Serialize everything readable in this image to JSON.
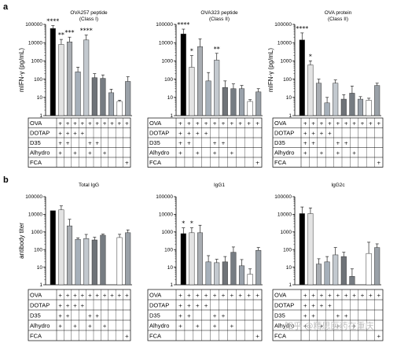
{
  "panel_labels": [
    "a",
    "b"
  ],
  "watermark": "知乎 @精思医药在重庆",
  "table_rows": [
    "OVA",
    "DOTAP",
    "D35",
    "Alhydro",
    "FCA"
  ],
  "bar_colors": [
    "#000000",
    "#e3e3e3",
    "#a9adb2",
    "#a6b0ba",
    "#c3c9cf",
    "#6f7378",
    "#767c82",
    "#9aa2ab",
    "#ffffff",
    "#9aa1a8"
  ],
  "row_a": {
    "ylabel": "mIFN-γ (pg/mL)",
    "yticks": [
      "1",
      "10",
      "100",
      "1000",
      "10000",
      "100000"
    ],
    "plus_matrix": [
      [
        1,
        1,
        1,
        1,
        1,
        1,
        1,
        1,
        1,
        1
      ],
      [
        1,
        1,
        1,
        1,
        0,
        0,
        0,
        0,
        0,
        0
      ],
      [
        1,
        1,
        0,
        0,
        1,
        1,
        0,
        0,
        0,
        0
      ],
      [
        1,
        0,
        1,
        0,
        1,
        0,
        1,
        0,
        0,
        0
      ],
      [
        0,
        0,
        0,
        0,
        0,
        0,
        0,
        0,
        0,
        1
      ]
    ]
  },
  "row_b": {
    "ylabel": "antibody titer",
    "yticks": [
      "1",
      "10",
      "100",
      "1000",
      "10000",
      "100000"
    ],
    "plus_matrix": [
      [
        1,
        1,
        1,
        1,
        1,
        1,
        1,
        1,
        1,
        1
      ],
      [
        1,
        1,
        1,
        1,
        0,
        0,
        0,
        0,
        0,
        0
      ],
      [
        1,
        1,
        0,
        0,
        1,
        1,
        0,
        0,
        0,
        0
      ],
      [
        1,
        0,
        1,
        0,
        1,
        0,
        1,
        0,
        0,
        0
      ],
      [
        0,
        0,
        0,
        0,
        0,
        0,
        0,
        0,
        0,
        1
      ]
    ]
  },
  "chart_data": [
    {
      "type": "bar",
      "panel": "a",
      "title": "OVA257 peptide",
      "subtitle": "(Class I)",
      "ylabel": "mIFN-γ (pg/mL)",
      "yscale": "log",
      "ylim": [
        1,
        100000
      ],
      "values": [
        60000,
        8000,
        11000,
        250,
        14000,
        120,
        110,
        18,
        6,
        75
      ],
      "errors": [
        25000,
        7000,
        9000,
        200,
        12000,
        80,
        60,
        10,
        1,
        60
      ],
      "stars": [
        "****",
        "**",
        "***",
        "",
        "****",
        "",
        "",
        "",
        "",
        ""
      ]
    },
    {
      "type": "bar",
      "panel": "a",
      "title": "OVA323 peptide",
      "subtitle": "(Class II)",
      "ylabel": "",
      "yscale": "log",
      "ylim": [
        1,
        100000
      ],
      "values": [
        30000,
        450,
        6000,
        80,
        1100,
        35,
        30,
        30,
        6,
        20
      ],
      "errors": [
        25000,
        1500,
        10000,
        150,
        1500,
        45,
        25,
        15,
        1.5,
        10
      ],
      "stars": [
        "****",
        "*",
        "",
        "",
        "**",
        "",
        "",
        "",
        "",
        ""
      ]
    },
    {
      "type": "bar",
      "panel": "a",
      "title": "OVA protein",
      "subtitle": "(Class II)",
      "ylabel": "mIFN-γ (pg/mL)",
      "yscale": "log",
      "ylim": [
        1,
        100000
      ],
      "values": [
        14000,
        600,
        60,
        5,
        60,
        8,
        17,
        8,
        7,
        45
      ],
      "errors": [
        20000,
        400,
        40,
        5,
        30,
        6,
        25,
        3,
        2,
        15
      ],
      "stars": [
        "****",
        "*",
        "",
        "",
        "",
        "",
        "",
        "",
        "",
        ""
      ]
    },
    {
      "type": "bar",
      "panel": "b",
      "title": "Total IgG",
      "subtitle": "",
      "ylabel": "antibody titer",
      "yscale": "log",
      "ylim": [
        1,
        100000
      ],
      "values": [
        16000,
        18000,
        2200,
        380,
        420,
        350,
        650,
        0,
        480,
        900
      ],
      "errors": [
        0,
        12000,
        3000,
        80,
        300,
        150,
        100,
        0,
        250,
        400
      ],
      "stars": [
        "",
        "",
        "",
        "",
        "",
        "",
        "",
        "",
        "",
        ""
      ]
    },
    {
      "type": "bar",
      "panel": "b",
      "title": "IgG1",
      "subtitle": "",
      "ylabel": "",
      "yscale": "log",
      "ylim": [
        1,
        100000
      ],
      "values": [
        800,
        900,
        900,
        20,
        18,
        20,
        70,
        12,
        4,
        90
      ],
      "errors": [
        900,
        800,
        1500,
        25,
        10,
        20,
        70,
        15,
        4,
        40
      ],
      "stars": [
        "*",
        "*",
        "",
        "",
        "",
        "",
        "",
        "",
        "",
        ""
      ]
    },
    {
      "type": "bar",
      "panel": "b",
      "title": "IgG2c",
      "subtitle": "",
      "ylabel": "",
      "yscale": "log",
      "ylim": [
        1,
        100000
      ],
      "values": [
        11000,
        11000,
        15,
        20,
        50,
        40,
        3,
        0,
        60,
        130
      ],
      "errors": [
        15000,
        12000,
        15,
        20,
        80,
        30,
        5,
        0,
        200,
        80
      ],
      "stars": [
        "",
        "",
        "",
        "",
        "",
        "",
        "",
        "",
        "",
        ""
      ]
    }
  ]
}
